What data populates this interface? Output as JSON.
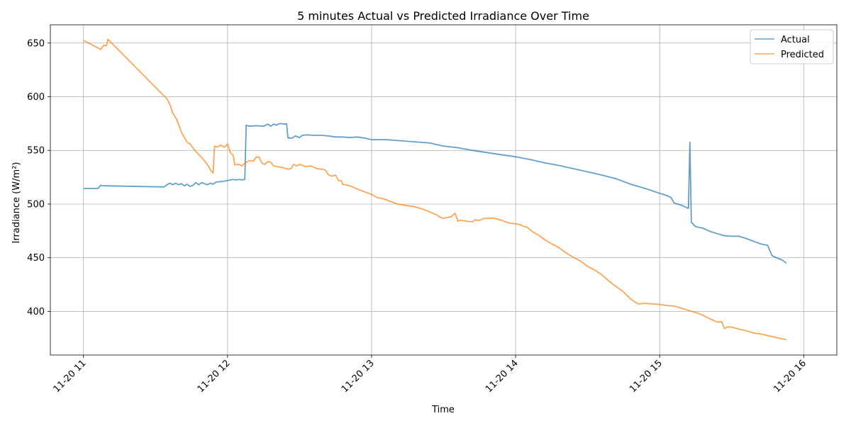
{
  "chart_data": {
    "type": "line",
    "title": "5 minutes Actual vs Predicted Irradiance Over Time",
    "xlabel": "Time",
    "ylabel": "Irradiance (W/m²)",
    "x_ticks": [
      "11-20 11",
      "11-20 12",
      "11-20 13",
      "11-20 14",
      "11-20 15",
      "11-20 16"
    ],
    "y_ticks": [
      400,
      450,
      500,
      550,
      600,
      650
    ],
    "xlim_hours": [
      10.77,
      16.23
    ],
    "ylim": [
      359.4,
      667
    ],
    "grid": true,
    "legend_position": "top-right",
    "series": [
      {
        "name": "Actual",
        "color": "#1f77b4",
        "points": [
          [
            11.0,
            514.5
          ],
          [
            11.1,
            514.5
          ],
          [
            11.12,
            517.5
          ],
          [
            11.14,
            517.0
          ],
          [
            11.56,
            516.0
          ],
          [
            11.58,
            518.0
          ],
          [
            11.6,
            519.5
          ],
          [
            11.62,
            518.0
          ],
          [
            11.64,
            519.5
          ],
          [
            11.66,
            518.0
          ],
          [
            11.68,
            519.0
          ],
          [
            11.7,
            517.0
          ],
          [
            11.72,
            518.5
          ],
          [
            11.74,
            516.5
          ],
          [
            11.76,
            517.5
          ],
          [
            11.78,
            520.0
          ],
          [
            11.8,
            518.0
          ],
          [
            11.82,
            520.0
          ],
          [
            11.84,
            519.0
          ],
          [
            11.86,
            518.0
          ],
          [
            11.88,
            519.5
          ],
          [
            11.9,
            518.5
          ],
          [
            11.92,
            520.5
          ],
          [
            11.96,
            521.0
          ],
          [
            12.0,
            522.0
          ],
          [
            12.04,
            523.0
          ],
          [
            12.06,
            522.5
          ],
          [
            12.08,
            523.0
          ],
          [
            12.1,
            522.5
          ],
          [
            12.12,
            523.0
          ],
          [
            12.13,
            573.5
          ],
          [
            12.15,
            572.5
          ],
          [
            12.2,
            573.0
          ],
          [
            12.25,
            572.5
          ],
          [
            12.28,
            574.5
          ],
          [
            12.3,
            572.5
          ],
          [
            12.32,
            574.5
          ],
          [
            12.34,
            573.5
          ],
          [
            12.36,
            575.0
          ],
          [
            12.4,
            574.5
          ],
          [
            12.41,
            575.0
          ],
          [
            12.42,
            561.5
          ],
          [
            12.45,
            561.5
          ],
          [
            12.47,
            563.5
          ],
          [
            12.5,
            562.0
          ],
          [
            12.52,
            564.0
          ],
          [
            12.55,
            564.5
          ],
          [
            12.6,
            564.0
          ],
          [
            12.65,
            564.0
          ],
          [
            12.7,
            563.5
          ],
          [
            12.75,
            562.5
          ],
          [
            12.8,
            562.5
          ],
          [
            12.85,
            562.0
          ],
          [
            12.9,
            562.5
          ],
          [
            12.95,
            561.5
          ],
          [
            13.0,
            560.0
          ],
          [
            13.05,
            560.0
          ],
          [
            13.1,
            560.0
          ],
          [
            13.2,
            559.0
          ],
          [
            13.3,
            558.0
          ],
          [
            13.4,
            557.0
          ],
          [
            13.5,
            554.0
          ],
          [
            13.6,
            552.5
          ],
          [
            13.7,
            550.0
          ],
          [
            13.8,
            548.0
          ],
          [
            13.9,
            546.0
          ],
          [
            14.0,
            544.0
          ],
          [
            14.1,
            541.5
          ],
          [
            14.2,
            538.5
          ],
          [
            14.3,
            536.0
          ],
          [
            14.4,
            533.0
          ],
          [
            14.5,
            530.0
          ],
          [
            14.6,
            527.0
          ],
          [
            14.7,
            523.5
          ],
          [
            14.8,
            518.5
          ],
          [
            14.9,
            514.5
          ],
          [
            15.0,
            510.0
          ],
          [
            15.05,
            508.0
          ],
          [
            15.08,
            506.0
          ],
          [
            15.1,
            501.0
          ],
          [
            15.15,
            499.0
          ],
          [
            15.2,
            496.0
          ],
          [
            15.21,
            557.5
          ],
          [
            15.22,
            483.0
          ],
          [
            15.25,
            479.0
          ],
          [
            15.3,
            477.5
          ],
          [
            15.35,
            474.5
          ],
          [
            15.4,
            472.5
          ],
          [
            15.45,
            470.5
          ],
          [
            15.5,
            470.0
          ],
          [
            15.55,
            470.0
          ],
          [
            15.6,
            468.0
          ],
          [
            15.65,
            465.5
          ],
          [
            15.7,
            463.0
          ],
          [
            15.75,
            461.5
          ],
          [
            15.78,
            452.0
          ],
          [
            15.82,
            449.5
          ],
          [
            15.85,
            448.0
          ],
          [
            15.88,
            445.0
          ]
        ]
      },
      {
        "name": "Predicted",
        "color": "#ff7f0e",
        "points": [
          [
            11.0,
            652.5
          ],
          [
            11.12,
            644.0
          ],
          [
            11.14,
            648.0
          ],
          [
            11.16,
            647.5
          ],
          [
            11.17,
            653.5
          ],
          [
            11.58,
            598.0
          ],
          [
            11.6,
            593.0
          ],
          [
            11.62,
            585.0
          ],
          [
            11.65,
            578.0
          ],
          [
            11.68,
            567.0
          ],
          [
            11.72,
            557.5
          ],
          [
            11.74,
            556.0
          ],
          [
            11.78,
            549.0
          ],
          [
            11.82,
            543.5
          ],
          [
            11.86,
            537.0
          ],
          [
            11.88,
            532.0
          ],
          [
            11.9,
            529.0
          ],
          [
            11.91,
            554.0
          ],
          [
            11.93,
            553.0
          ],
          [
            11.95,
            555.0
          ],
          [
            11.98,
            553.0
          ],
          [
            12.0,
            556.0
          ],
          [
            12.02,
            548.0
          ],
          [
            12.04,
            545.0
          ],
          [
            12.05,
            536.5
          ],
          [
            12.08,
            537.0
          ],
          [
            12.1,
            535.5
          ],
          [
            12.12,
            538.0
          ],
          [
            12.15,
            540.5
          ],
          [
            12.18,
            540.0
          ],
          [
            12.2,
            544.0
          ],
          [
            12.22,
            543.5
          ],
          [
            12.24,
            538.0
          ],
          [
            12.26,
            537.0
          ],
          [
            12.28,
            539.5
          ],
          [
            12.3,
            539.0
          ],
          [
            12.32,
            535.5
          ],
          [
            12.38,
            534.0
          ],
          [
            12.42,
            532.5
          ],
          [
            12.44,
            533.0
          ],
          [
            12.46,
            537.0
          ],
          [
            12.48,
            535.5
          ],
          [
            12.5,
            537.0
          ],
          [
            12.54,
            535.0
          ],
          [
            12.58,
            535.5
          ],
          [
            12.62,
            533.0
          ],
          [
            12.66,
            532.5
          ],
          [
            12.68,
            531.5
          ],
          [
            12.7,
            527.5
          ],
          [
            12.72,
            526.0
          ],
          [
            12.75,
            527.0
          ],
          [
            12.77,
            522.0
          ],
          [
            12.79,
            521.5
          ],
          [
            12.8,
            518.5
          ],
          [
            12.85,
            517.0
          ],
          [
            12.9,
            514.0
          ],
          [
            12.95,
            511.5
          ],
          [
            13.0,
            509.0
          ],
          [
            13.04,
            506.0
          ],
          [
            13.08,
            505.0
          ],
          [
            13.12,
            503.0
          ],
          [
            13.18,
            500.0
          ],
          [
            13.25,
            498.5
          ],
          [
            13.3,
            497.5
          ],
          [
            13.35,
            495.5
          ],
          [
            13.4,
            493.0
          ],
          [
            13.45,
            490.0
          ],
          [
            13.48,
            487.5
          ],
          [
            13.5,
            486.5
          ],
          [
            13.52,
            487.5
          ],
          [
            13.55,
            488.0
          ],
          [
            13.58,
            491.5
          ],
          [
            13.6,
            484.0
          ],
          [
            13.62,
            485.0
          ],
          [
            13.66,
            484.0
          ],
          [
            13.7,
            483.5
          ],
          [
            13.72,
            485.5
          ],
          [
            13.74,
            484.5
          ],
          [
            13.78,
            486.5
          ],
          [
            13.85,
            487.0
          ],
          [
            13.9,
            485.0
          ],
          [
            13.95,
            482.5
          ],
          [
            14.0,
            481.5
          ],
          [
            14.03,
            481.0
          ],
          [
            14.05,
            479.5
          ],
          [
            14.08,
            478.5
          ],
          [
            14.12,
            474.0
          ],
          [
            14.16,
            471.0
          ],
          [
            14.2,
            467.0
          ],
          [
            14.25,
            463.0
          ],
          [
            14.3,
            459.5
          ],
          [
            14.35,
            454.5
          ],
          [
            14.4,
            450.5
          ],
          [
            14.45,
            447.0
          ],
          [
            14.5,
            442.0
          ],
          [
            14.55,
            438.5
          ],
          [
            14.6,
            434.0
          ],
          [
            14.65,
            428.0
          ],
          [
            14.7,
            423.0
          ],
          [
            14.75,
            418.0
          ],
          [
            14.8,
            411.5
          ],
          [
            14.85,
            407.0
          ],
          [
            14.9,
            407.5
          ],
          [
            14.95,
            407.0
          ],
          [
            15.0,
            406.5
          ],
          [
            15.05,
            405.5
          ],
          [
            15.1,
            405.0
          ],
          [
            15.15,
            403.0
          ],
          [
            15.2,
            401.0
          ],
          [
            15.25,
            399.0
          ],
          [
            15.3,
            396.5
          ],
          [
            15.35,
            393.0
          ],
          [
            15.4,
            390.0
          ],
          [
            15.43,
            390.5
          ],
          [
            15.45,
            384.0
          ],
          [
            15.47,
            385.5
          ],
          [
            15.5,
            385.5
          ],
          [
            15.55,
            383.5
          ],
          [
            15.6,
            382.0
          ],
          [
            15.65,
            380.0
          ],
          [
            15.7,
            379.0
          ],
          [
            15.75,
            377.5
          ],
          [
            15.8,
            376.0
          ],
          [
            15.85,
            374.5
          ],
          [
            15.88,
            373.5
          ]
        ]
      }
    ]
  }
}
